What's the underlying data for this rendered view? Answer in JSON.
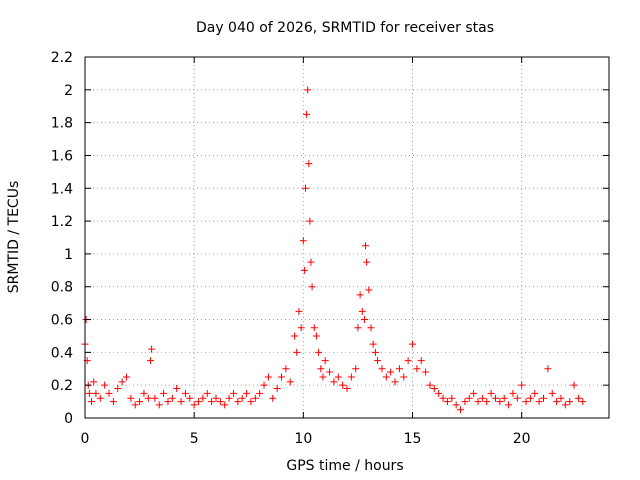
{
  "chart_data": {
    "type": "scatter",
    "title": "Day 040 of 2026, SRMTID for receiver stas",
    "xlabel": "GPS time / hours",
    "ylabel": "SRMTID / TECUs",
    "xlim": [
      0,
      24
    ],
    "ylim": [
      0,
      2.2
    ],
    "xticks": [
      0,
      5,
      10,
      15,
      20
    ],
    "yticks": [
      0,
      0.2,
      0.4,
      0.6,
      0.8,
      1,
      1.2,
      1.4,
      1.6,
      1.8,
      2,
      2.2
    ],
    "ytick_labels": [
      "0",
      "0.2",
      "0.4",
      "0.6",
      "0.8",
      "1",
      "1.2",
      "1.4",
      "1.6",
      "1.8",
      "2",
      "2.2"
    ],
    "grid": true,
    "marker": "+",
    "color": "#ff0000",
    "series": [
      {
        "name": "SRMTID",
        "x": [
          0.0,
          0.05,
          0.1,
          0.15,
          0.2,
          0.3,
          0.4,
          0.5,
          0.7,
          0.9,
          1.1,
          1.3,
          1.5,
          1.7,
          1.9,
          2.1,
          2.3,
          2.5,
          2.7,
          2.9,
          3.0,
          3.05,
          3.2,
          3.4,
          3.6,
          3.8,
          4.0,
          4.2,
          4.4,
          4.6,
          4.8,
          5.0,
          5.2,
          5.4,
          5.6,
          5.8,
          6.0,
          6.2,
          6.4,
          6.6,
          6.8,
          7.0,
          7.2,
          7.4,
          7.6,
          7.8,
          8.0,
          8.2,
          8.4,
          8.6,
          8.8,
          9.0,
          9.2,
          9.4,
          9.6,
          9.7,
          9.8,
          9.9,
          10.0,
          10.05,
          10.1,
          10.15,
          10.2,
          10.25,
          10.3,
          10.35,
          10.4,
          10.5,
          10.6,
          10.7,
          10.8,
          10.9,
          11.0,
          11.2,
          11.4,
          11.6,
          11.8,
          12.0,
          12.2,
          12.4,
          12.5,
          12.6,
          12.7,
          12.8,
          12.85,
          12.9,
          13.0,
          13.1,
          13.2,
          13.3,
          13.4,
          13.6,
          13.8,
          14.0,
          14.2,
          14.4,
          14.6,
          14.8,
          15.0,
          15.2,
          15.4,
          15.6,
          15.8,
          16.0,
          16.2,
          16.4,
          16.6,
          16.8,
          17.0,
          17.2,
          17.4,
          17.6,
          17.8,
          18.0,
          18.2,
          18.4,
          18.6,
          18.8,
          19.0,
          19.2,
          19.4,
          19.6,
          19.8,
          20.0,
          20.2,
          20.4,
          20.6,
          20.8,
          21.0,
          21.2,
          21.4,
          21.6,
          21.8,
          22.0,
          22.2,
          22.4,
          22.6,
          22.8
        ],
        "y": [
          0.45,
          0.6,
          0.35,
          0.2,
          0.15,
          0.1,
          0.22,
          0.15,
          0.12,
          0.2,
          0.15,
          0.1,
          0.18,
          0.22,
          0.25,
          0.12,
          0.08,
          0.1,
          0.15,
          0.12,
          0.35,
          0.42,
          0.12,
          0.08,
          0.15,
          0.1,
          0.12,
          0.18,
          0.1,
          0.15,
          0.12,
          0.08,
          0.1,
          0.12,
          0.15,
          0.1,
          0.12,
          0.1,
          0.08,
          0.12,
          0.15,
          0.1,
          0.12,
          0.15,
          0.1,
          0.12,
          0.15,
          0.2,
          0.25,
          0.12,
          0.18,
          0.25,
          0.3,
          0.22,
          0.5,
          0.4,
          0.65,
          0.55,
          1.08,
          0.9,
          1.4,
          1.85,
          2.0,
          1.55,
          1.2,
          0.95,
          0.8,
          0.55,
          0.5,
          0.4,
          0.3,
          0.25,
          0.35,
          0.28,
          0.22,
          0.25,
          0.2,
          0.18,
          0.25,
          0.3,
          0.55,
          0.75,
          0.65,
          0.6,
          1.05,
          0.95,
          0.78,
          0.55,
          0.45,
          0.4,
          0.35,
          0.3,
          0.25,
          0.28,
          0.22,
          0.3,
          0.25,
          0.35,
          0.45,
          0.3,
          0.35,
          0.28,
          0.2,
          0.18,
          0.15,
          0.12,
          0.1,
          0.12,
          0.08,
          0.05,
          0.1,
          0.12,
          0.15,
          0.1,
          0.12,
          0.1,
          0.15,
          0.12,
          0.1,
          0.12,
          0.08,
          0.15,
          0.12,
          0.2,
          0.1,
          0.12,
          0.15,
          0.1,
          0.12,
          0.3,
          0.15,
          0.1,
          0.12,
          0.08,
          0.1,
          0.2,
          0.12,
          0.1
        ]
      }
    ]
  }
}
